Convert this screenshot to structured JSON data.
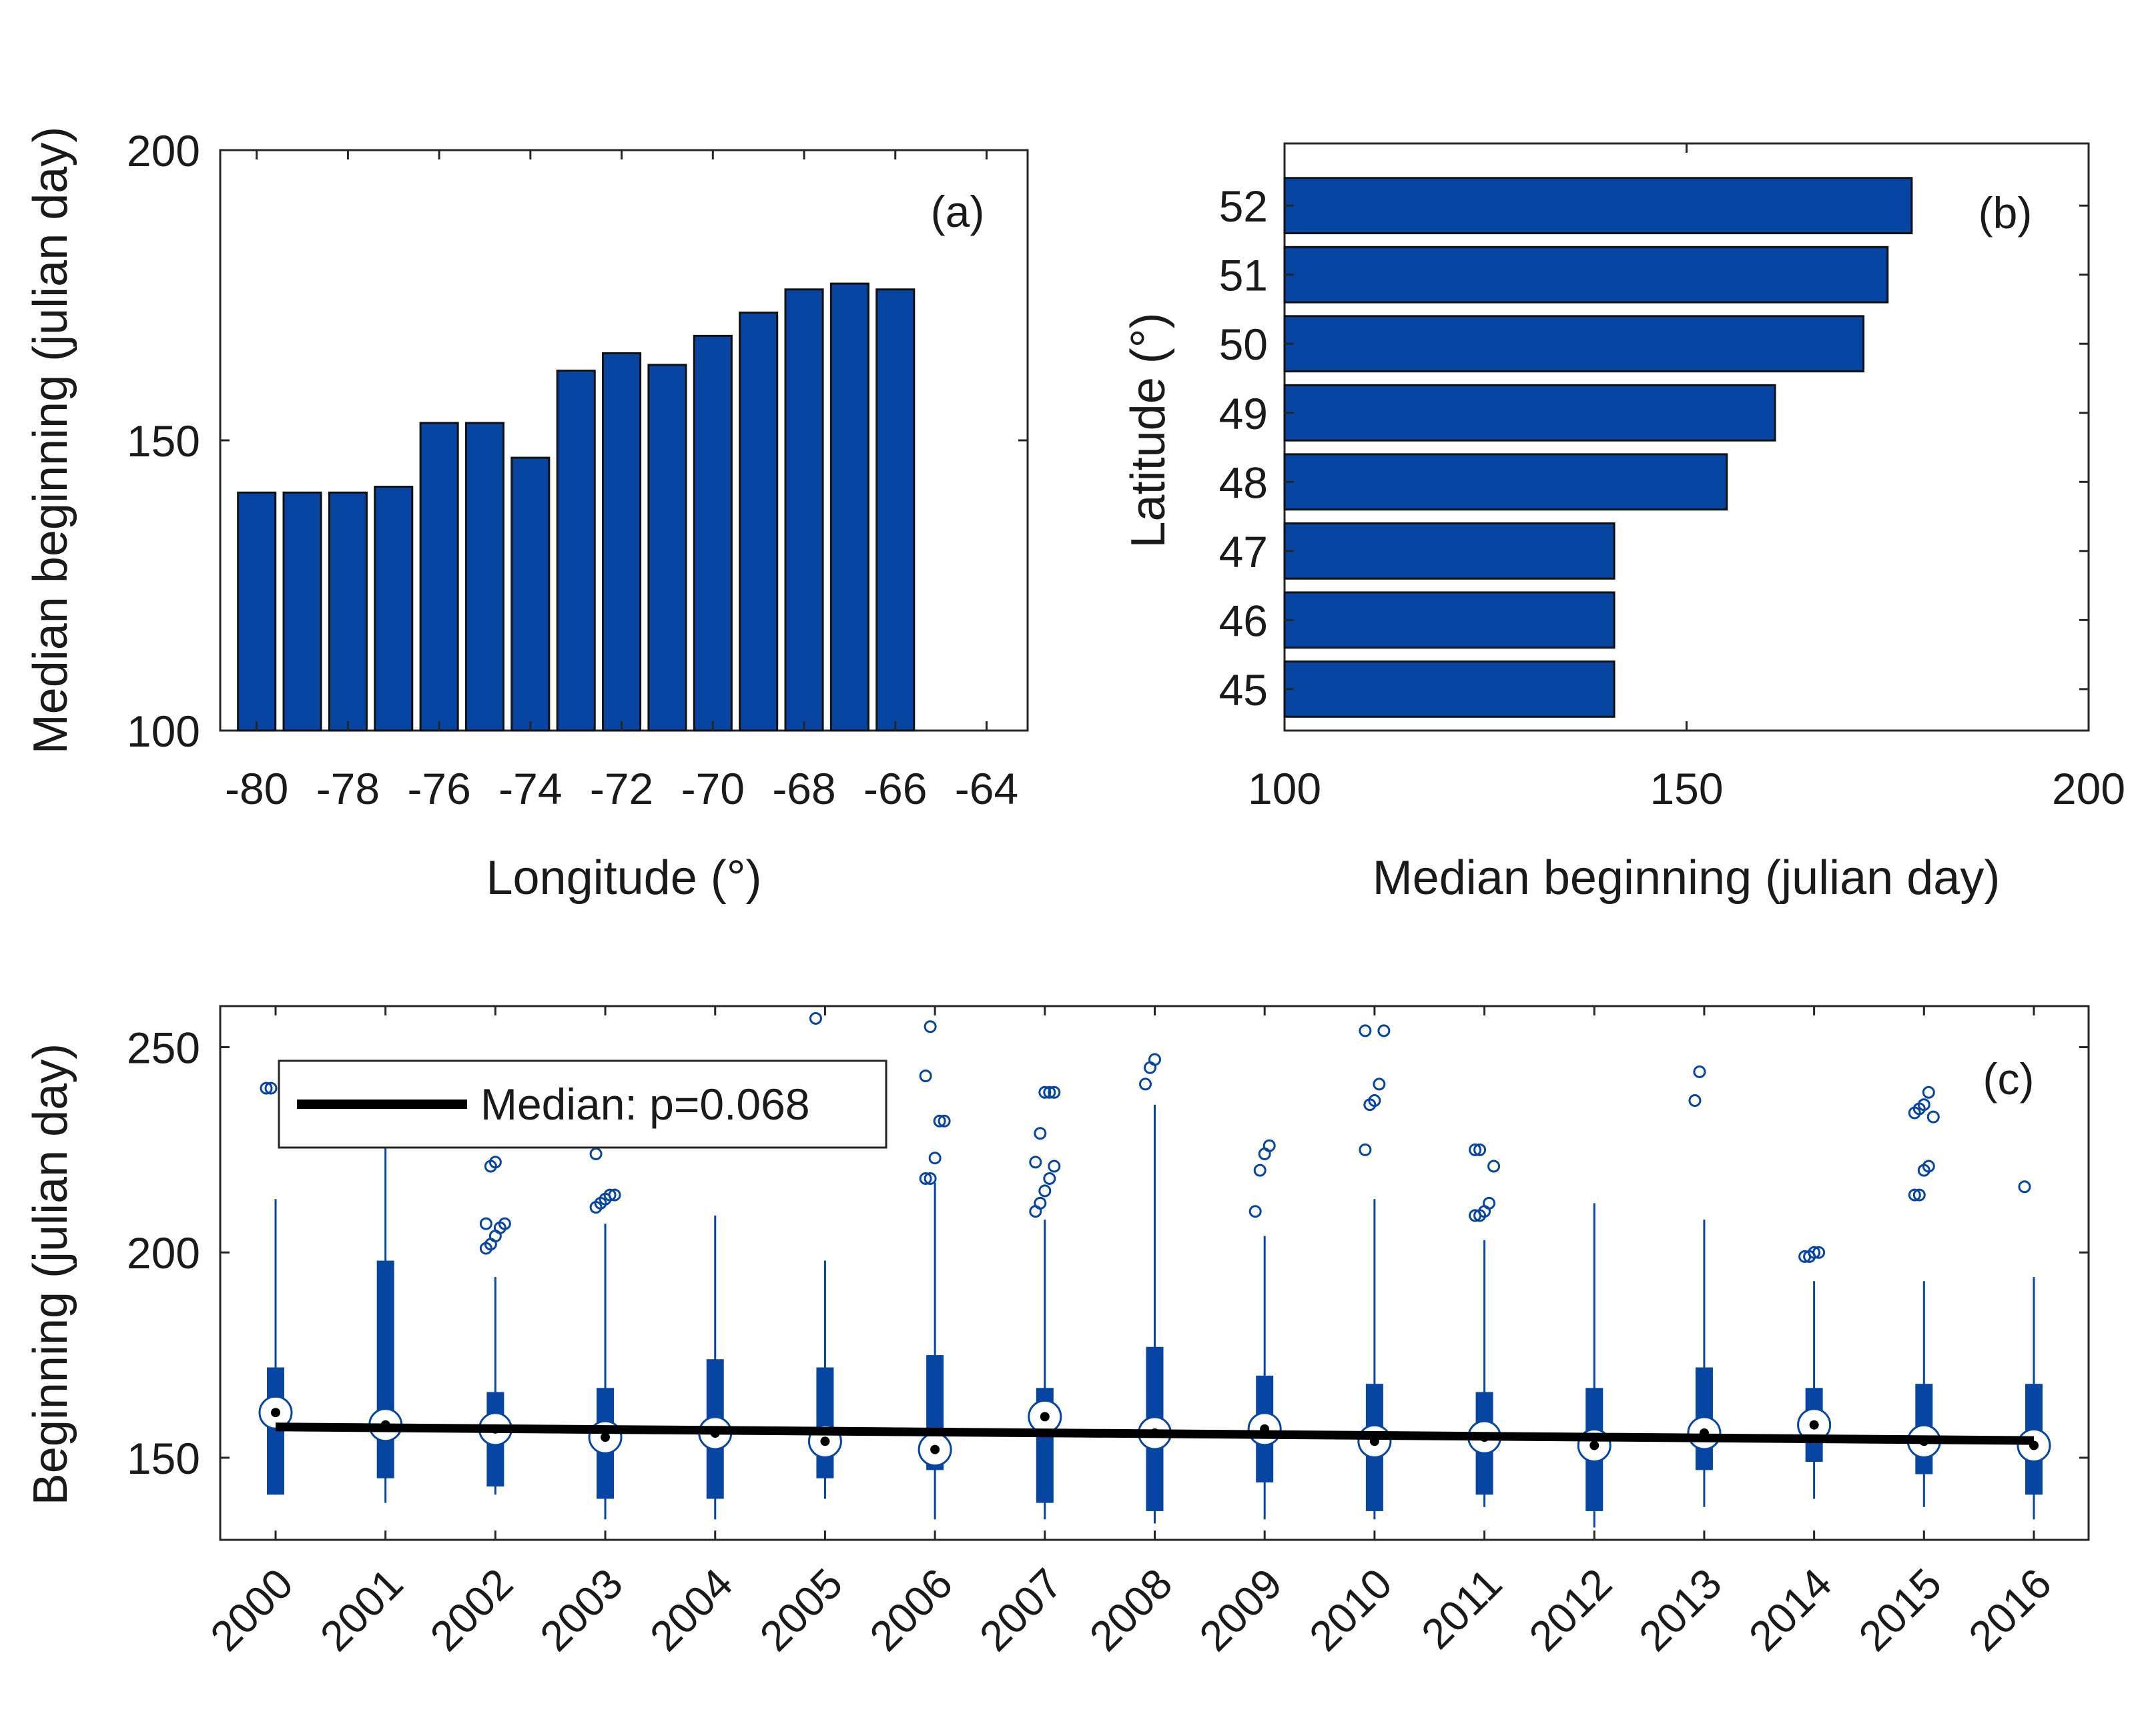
{
  "colors": {
    "bar": "#0645A1",
    "bar_edge": "#111111",
    "axis": "#262626",
    "median_line": "#000000",
    "outlier": "#0645A1"
  },
  "chart_data": [
    {
      "id": "a",
      "type": "bar",
      "panel_label": "(a)",
      "xlabel": "Longitude (°)",
      "ylabel": "Median beginning (julian day)",
      "x": [
        -80,
        -79,
        -78,
        -77,
        -76,
        -75,
        -74,
        -73,
        -72,
        -71,
        -70,
        -69,
        -68,
        -67,
        -66
      ],
      "values": [
        141,
        141,
        141,
        142,
        153,
        153,
        147,
        162,
        165,
        163,
        168,
        172,
        176,
        177,
        176
      ],
      "xlim": [
        -80.8,
        -63.1
      ],
      "ylim": [
        100,
        200
      ],
      "xticks": [
        -80,
        -78,
        -76,
        -74,
        -72,
        -70,
        -68,
        -66,
        -64
      ],
      "xtick_labels": [
        "-80",
        "-78",
        "-76",
        "-74",
        "-72",
        "-70",
        "-68",
        "-66",
        "-64"
      ],
      "yticks": [
        100,
        150,
        200
      ],
      "ytick_labels": [
        "100",
        "150",
        "200"
      ]
    },
    {
      "id": "b",
      "type": "bar",
      "orientation": "horizontal",
      "panel_label": "(b)",
      "xlabel": "Median beginning (julian day)",
      "ylabel": "Latitude (°)",
      "categories": [
        45,
        46,
        47,
        48,
        49,
        50,
        51,
        52
      ],
      "values": [
        141,
        141,
        141,
        155,
        161,
        172,
        175,
        178
      ],
      "xlim": [
        100,
        200
      ],
      "ylim": [
        44.4,
        52.9
      ],
      "xticks": [
        100,
        150,
        200
      ],
      "xtick_labels": [
        "100",
        "150",
        "200"
      ],
      "yticks": [
        45,
        46,
        47,
        48,
        49,
        50,
        51,
        52
      ],
      "ytick_labels": [
        "45",
        "46",
        "47",
        "48",
        "49",
        "50",
        "51",
        "52"
      ]
    },
    {
      "id": "c",
      "type": "box",
      "panel_label": "(c)",
      "ylabel": "Beginning (julian day)",
      "xlabel": "",
      "ylim": [
        130,
        260
      ],
      "yticks": [
        150,
        200,
        250
      ],
      "ytick_labels": [
        "150",
        "200",
        "250"
      ],
      "categories": [
        "2000",
        "2001",
        "2002",
        "2003",
        "2004",
        "2005",
        "2006",
        "2007",
        "2008",
        "2009",
        "2010",
        "2011",
        "2012",
        "2013",
        "2014",
        "2015",
        "2016"
      ],
      "boxes": [
        {
          "whisker_low": 141,
          "q1": 141,
          "median": 161,
          "q3": 172,
          "whisker_high": 213,
          "outliers": [
            240,
            240
          ]
        },
        {
          "whisker_low": 139,
          "q1": 145,
          "median": 158,
          "q3": 198,
          "whisker_high": 226,
          "outliers": []
        },
        {
          "whisker_low": 141,
          "q1": 143,
          "median": 157,
          "q3": 166,
          "whisker_high": 194,
          "outliers": [
            201,
            202,
            204,
            206,
            207,
            207,
            221,
            222
          ]
        },
        {
          "whisker_low": 135,
          "q1": 140,
          "median": 155,
          "q3": 167,
          "whisker_high": 207,
          "outliers": [
            211,
            212,
            213,
            214,
            214,
            224
          ]
        },
        {
          "whisker_low": 135,
          "q1": 140,
          "median": 156,
          "q3": 174,
          "whisker_high": 209,
          "outliers": []
        },
        {
          "whisker_low": 140,
          "q1": 145,
          "median": 154,
          "q3": 172,
          "whisker_high": 198,
          "outliers": [
            257
          ]
        },
        {
          "whisker_low": 135,
          "q1": 147,
          "median": 152,
          "q3": 175,
          "whisker_high": 217,
          "outliers": [
            218,
            218,
            223,
            232,
            232,
            243,
            255
          ]
        },
        {
          "whisker_low": 135,
          "q1": 139,
          "median": 160,
          "q3": 167,
          "whisker_high": 208,
          "outliers": [
            210,
            212,
            215,
            218,
            221,
            222,
            229,
            239,
            239,
            239
          ]
        },
        {
          "whisker_low": 134,
          "q1": 137,
          "median": 156,
          "q3": 177,
          "whisker_high": 236,
          "outliers": [
            241,
            245,
            247
          ]
        },
        {
          "whisker_low": 135,
          "q1": 144,
          "median": 157,
          "q3": 170,
          "whisker_high": 204,
          "outliers": [
            210,
            220,
            224,
            226
          ]
        },
        {
          "whisker_low": 135,
          "q1": 137,
          "median": 154,
          "q3": 168,
          "whisker_high": 213,
          "outliers": [
            225,
            236,
            237,
            241,
            254,
            254
          ]
        },
        {
          "whisker_low": 138,
          "q1": 141,
          "median": 155,
          "q3": 166,
          "whisker_high": 203,
          "outliers": [
            209,
            209,
            210,
            212,
            221,
            225,
            225
          ]
        },
        {
          "whisker_low": 133,
          "q1": 137,
          "median": 153,
          "q3": 167,
          "whisker_high": 212,
          "outliers": []
        },
        {
          "whisker_low": 138,
          "q1": 147,
          "median": 156,
          "q3": 172,
          "whisker_high": 208,
          "outliers": [
            237,
            244
          ]
        },
        {
          "whisker_low": 140,
          "q1": 149,
          "median": 158,
          "q3": 167,
          "whisker_high": 193,
          "outliers": [
            199,
            199,
            200,
            200
          ]
        },
        {
          "whisker_low": 138,
          "q1": 146,
          "median": 154,
          "q3": 168,
          "whisker_high": 193,
          "outliers": [
            214,
            214,
            220,
            221,
            233,
            234,
            235,
            236,
            239
          ]
        },
        {
          "whisker_low": 135,
          "q1": 141,
          "median": 153,
          "q3": 168,
          "whisker_high": 194,
          "outliers": [
            216
          ]
        }
      ],
      "median_trend": {
        "start": [
          2000,
          157.5
        ],
        "end": [
          2016,
          154.2
        ]
      },
      "legend_entry": "Median: p=0.068",
      "legend_location": "top-left"
    }
  ]
}
